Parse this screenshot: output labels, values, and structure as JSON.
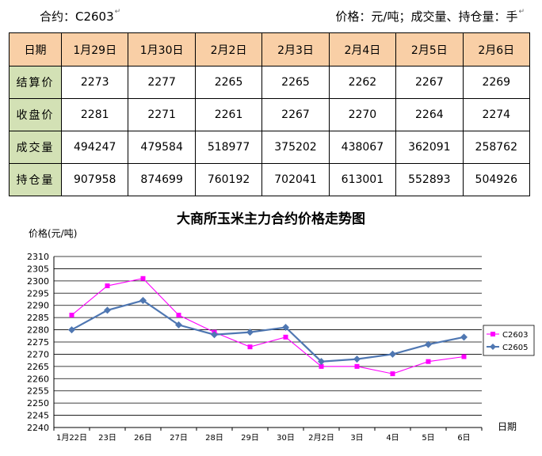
{
  "header": {
    "contract": "合约：C2603",
    "units": "价格：元/吨；成交量、持仓量：手",
    "mark": "↵"
  },
  "table": {
    "corner": "日期",
    "dates": [
      "1月29日",
      "1月30日",
      "2月2日",
      "2月3日",
      "2月4日",
      "2月5日",
      "2月6日"
    ],
    "rows": [
      {
        "label": "结算价",
        "values": [
          "2273",
          "2277",
          "2265",
          "2265",
          "2262",
          "2267",
          "2269"
        ]
      },
      {
        "label": "收盘价",
        "values": [
          "2281",
          "2271",
          "2261",
          "2267",
          "2270",
          "2264",
          "2274"
        ]
      },
      {
        "label": "成交量",
        "values": [
          "494247",
          "479584",
          "518977",
          "375202",
          "438067",
          "362091",
          "258762"
        ]
      },
      {
        "label": "持仓量",
        "values": [
          "907958",
          "874699",
          "760192",
          "702041",
          "613001",
          "552893",
          "504926"
        ]
      }
    ]
  },
  "chart_data": {
    "type": "line",
    "title": "大商所玉米主力合约价格走势图",
    "ylabel": "价格(元/吨)",
    "xlabel": "日期",
    "categories": [
      "1月22日",
      "23日",
      "26日",
      "27日",
      "28日",
      "29日",
      "30日",
      "2月2日",
      "3日",
      "4日",
      "5日",
      "6日"
    ],
    "ylim": [
      2240,
      2310
    ],
    "ystep": 5,
    "grid": true,
    "legend": "right",
    "series": [
      {
        "name": "C2603",
        "color": "#ff00ff",
        "marker": "square",
        "values": [
          2286,
          2298,
          2301,
          2286,
          2279,
          2273,
          2277,
          2265,
          2265,
          2262,
          2267,
          2269
        ]
      },
      {
        "name": "C2605",
        "color": "#4f77b2",
        "marker": "diamond",
        "values": [
          2280,
          2288,
          2292,
          2282,
          2278,
          2279,
          2281,
          2267,
          2268,
          2270,
          2274,
          2277
        ]
      }
    ]
  }
}
